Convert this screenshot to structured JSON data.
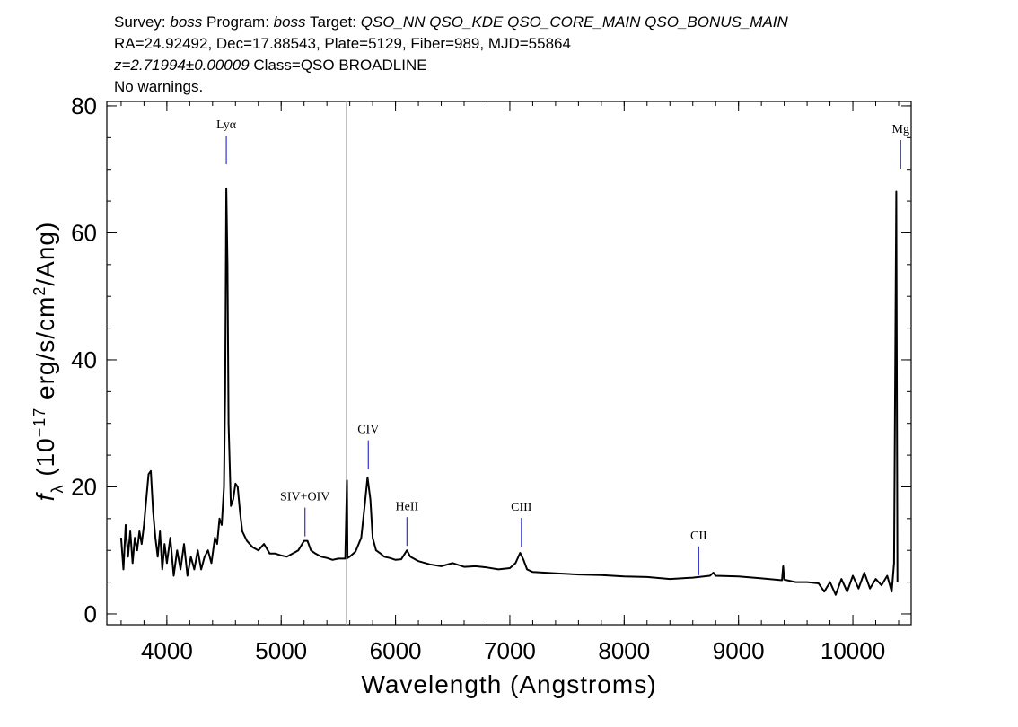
{
  "chart_data": {
    "type": "line",
    "title_lines": [
      [
        {
          "text": "Survey: "
        },
        {
          "text": "boss",
          "italic": true
        },
        {
          "text": " Program: "
        },
        {
          "text": "boss",
          "italic": true
        },
        {
          "text": " Target: "
        },
        {
          "text": "QSO_NN QSO_KDE QSO_CORE_MAIN QSO_BONUS_MAIN",
          "italic": true
        }
      ],
      [
        {
          "text": "RA=24.92492, Dec=17.88543, Plate=5129, Fiber=989, MJD=55864"
        }
      ],
      [
        {
          "text": "z=2.71994±0.00009",
          "italic": true
        },
        {
          "text": " Class=QSO BROADLINE"
        }
      ],
      [
        {
          "text": "No warnings."
        }
      ]
    ],
    "xlabel": "Wavelength (Angstroms)",
    "ylabel": [
      {
        "text": "f",
        "italic": true
      },
      {
        "text": "λ",
        "shift": "sub"
      },
      {
        "text": " (10"
      },
      {
        "text": "−17",
        "shift": "sup"
      },
      {
        "text": " erg/s/cm"
      },
      {
        "text": "2",
        "shift": "sup"
      },
      {
        "text": "/Ang)"
      }
    ],
    "xlim": [
      3475,
      10510
    ],
    "ylim": [
      -1.7,
      80.7
    ],
    "xticks": [
      4000,
      5000,
      6000,
      7000,
      8000,
      9000,
      10000
    ],
    "yticks": [
      0,
      20,
      40,
      60,
      80
    ],
    "x_minor_step": 200,
    "y_minor_step": 5,
    "grid": false,
    "color": "#000000",
    "annotation_color": "#3333cc",
    "reference_line": 5571,
    "reference_color": "#b0b0b0",
    "x": [
      3600,
      3620,
      3640,
      3660,
      3680,
      3700,
      3720,
      3740,
      3760,
      3780,
      3800,
      3820,
      3840,
      3860,
      3880,
      3900,
      3920,
      3940,
      3960,
      3980,
      4000,
      4030,
      4060,
      4090,
      4120,
      4150,
      4180,
      4210,
      4240,
      4270,
      4300,
      4330,
      4360,
      4390,
      4420,
      4440,
      4460,
      4480,
      4500,
      4510,
      4520,
      4530,
      4540,
      4560,
      4580,
      4600,
      4620,
      4640,
      4660,
      4700,
      4750,
      4800,
      4850,
      4900,
      4950,
      5000,
      5050,
      5100,
      5150,
      5200,
      5230,
      5260,
      5300,
      5350,
      5400,
      5450,
      5500,
      5560,
      5575,
      5580,
      5600,
      5650,
      5700,
      5730,
      5755,
      5780,
      5800,
      5830,
      5870,
      5900,
      5950,
      6000,
      6050,
      6100,
      6130,
      6200,
      6300,
      6400,
      6500,
      6600,
      6700,
      6800,
      6900,
      7000,
      7050,
      7090,
      7120,
      7150,
      7200,
      7400,
      7600,
      7800,
      8000,
      8200,
      8400,
      8600,
      8750,
      8780,
      8800,
      9000,
      9200,
      9380,
      9390,
      9400,
      9500,
      9600,
      9700,
      9750,
      9800,
      9850,
      9900,
      9950,
      10000,
      10050,
      10100,
      10150,
      10200,
      10250,
      10300,
      10340,
      10360,
      10380,
      10390
    ],
    "values": [
      12,
      7,
      14,
      9,
      13,
      8,
      12,
      10,
      13,
      11,
      14,
      18,
      22,
      22.5,
      16,
      12,
      9,
      13,
      7,
      11,
      8,
      12,
      6,
      10,
      7,
      11,
      6,
      9,
      7,
      10,
      7,
      9,
      10,
      8,
      12,
      11,
      15,
      14,
      20,
      35,
      67,
      55,
      30,
      17,
      18,
      20.5,
      20,
      16,
      13,
      11.5,
      10.5,
      10,
      11,
      9.5,
      9.5,
      9.2,
      9,
      9.5,
      10,
      11.5,
      11.5,
      10,
      9.5,
      9,
      8.8,
      8.5,
      8.7,
      8.7,
      21,
      8.8,
      9,
      9.8,
      12,
      17,
      21.5,
      18,
      12,
      10,
      9.5,
      9,
      8.8,
      8.5,
      8.6,
      10,
      9,
      8.3,
      7.8,
      7.5,
      8,
      7.4,
      7.5,
      7.3,
      7,
      7.2,
      8,
      9.6,
      8.5,
      7,
      6.6,
      6.4,
      6.2,
      6.1,
      5.9,
      5.8,
      5.5,
      5.7,
      6,
      6.5,
      6,
      5.9,
      5.6,
      5.3,
      7.5,
      5.4,
      5,
      5,
      4.8,
      3.5,
      5,
      3,
      5.5,
      3.5,
      6,
      4,
      6.5,
      4,
      5.5,
      4.5,
      6,
      3.5,
      8,
      66.5,
      5
    ],
    "annotations": [
      {
        "label": "Lyα",
        "x": 4520,
        "y": 70.8
      },
      {
        "label": "SIV+OIV",
        "x": 5208,
        "y": 12.2
      },
      {
        "label": "CIV",
        "x": 5762,
        "y": 22.8
      },
      {
        "label": "HeII",
        "x": 6100,
        "y": 10.7
      },
      {
        "label": "CIII",
        "x": 7101,
        "y": 10.6
      },
      {
        "label": "CII",
        "x": 8652,
        "y": 6.1
      },
      {
        "label": "Mg",
        "x": 10418,
        "y": 70.1
      }
    ]
  }
}
